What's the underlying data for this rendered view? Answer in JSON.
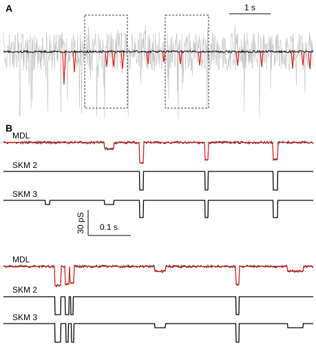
{
  "panel_a": {
    "label": "A",
    "scale_bar": "1 s"
  },
  "panel_b": {
    "label": "B",
    "scale_bar_y": "30 pS",
    "scale_bar_x": "0.1 s",
    "sections": [
      {
        "traces": [
          "MDL",
          "SKM 2",
          "SKM 3"
        ]
      },
      {
        "traces": [
          "MDL",
          "SKM 2",
          "SKM 3"
        ]
      }
    ]
  }
}
